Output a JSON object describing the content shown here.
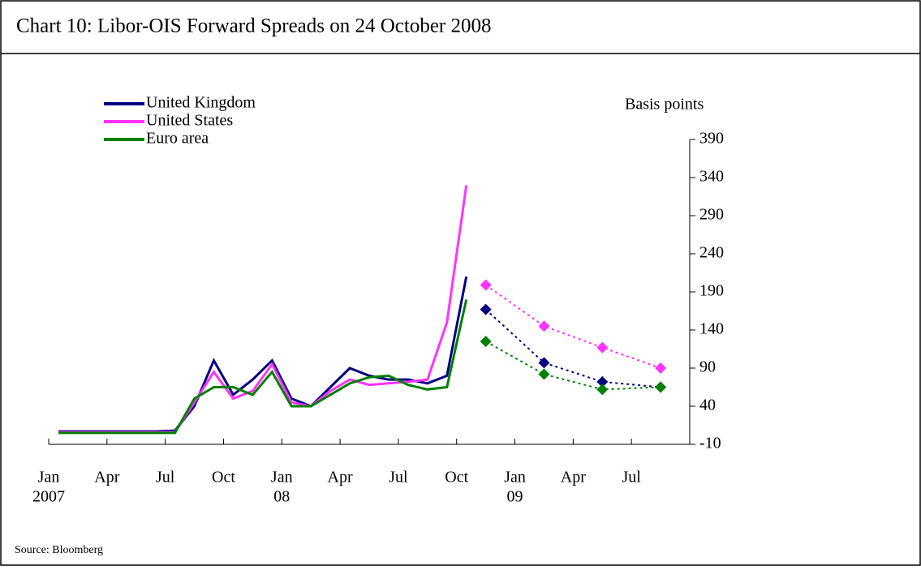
{
  "chart_data": {
    "type": "line",
    "title": "Chart  10:  Libor-OIS Forward Spreads on 24 October 2008",
    "y_label": "Basis points",
    "source": "Source:  Bloomberg",
    "x": [
      "2007-01",
      "2007-02",
      "2007-03",
      "2007-04",
      "2007-05",
      "2007-06",
      "2007-07",
      "2007-08",
      "2007-09",
      "2007-10",
      "2007-11",
      "2007-12",
      "2008-01",
      "2008-02",
      "2008-03",
      "2008-04",
      "2008-05",
      "2008-06",
      "2008-07",
      "2008-08",
      "2008-09",
      "2008-10"
    ],
    "forward_x": [
      "2008-11",
      "2009-02",
      "2009-05",
      "2009-08"
    ],
    "series": [
      {
        "name": "United Kingdom",
        "color": "#000080",
        "values": [
          7,
          7,
          7,
          7,
          7,
          7,
          8,
          40,
          100,
          55,
          75,
          100,
          50,
          40,
          65,
          90,
          80,
          75,
          75,
          70,
          80,
          210
        ],
        "forward_values": [
          167,
          97,
          72,
          65
        ]
      },
      {
        "name": "United States",
        "color": "#ff33ff",
        "values": [
          6,
          6,
          6,
          6,
          6,
          6,
          6,
          45,
          85,
          50,
          60,
          95,
          45,
          40,
          60,
          75,
          68,
          70,
          72,
          75,
          150,
          330
        ],
        "forward_values": [
          199,
          145,
          117,
          90
        ]
      },
      {
        "name": "Euro area",
        "color": "#008000",
        "values": [
          5,
          5,
          5,
          5,
          5,
          5,
          5,
          50,
          65,
          65,
          55,
          85,
          40,
          40,
          55,
          70,
          78,
          80,
          68,
          62,
          65,
          180
        ],
        "forward_values": [
          125,
          82,
          62,
          65
        ]
      }
    ],
    "xlim": [
      "2007-01",
      "2009-10"
    ],
    "xticks": [
      {
        "value": "2007-01",
        "label": "Jan"
      },
      {
        "value": "2007-04",
        "label": "Apr"
      },
      {
        "value": "2007-07",
        "label": "Jul"
      },
      {
        "value": "2007-10",
        "label": "Oct"
      },
      {
        "value": "2008-01",
        "label": "Jan"
      },
      {
        "value": "2008-04",
        "label": "Apr"
      },
      {
        "value": "2008-07",
        "label": "Jul"
      },
      {
        "value": "2008-10",
        "label": "Oct"
      },
      {
        "value": "2009-01",
        "label": "Jan"
      },
      {
        "value": "2009-04",
        "label": "Apr"
      },
      {
        "value": "2009-07",
        "label": "Jul"
      }
    ],
    "x_year_labels": [
      {
        "value": "2007-01",
        "label": "2007"
      },
      {
        "value": "2008-01",
        "label": "08"
      },
      {
        "value": "2009-01",
        "label": "09"
      }
    ],
    "ylim": [
      -10,
      390
    ],
    "yticks": [
      -10,
      40,
      90,
      140,
      190,
      240,
      290,
      340,
      390
    ],
    "legend": "upper left"
  }
}
